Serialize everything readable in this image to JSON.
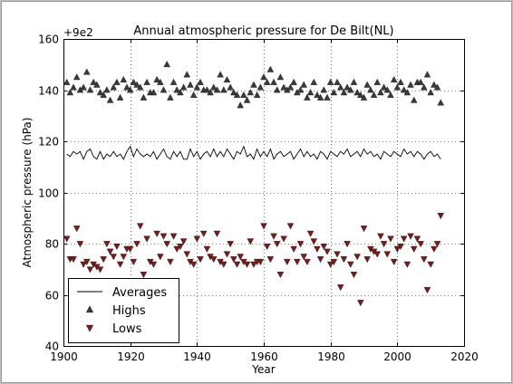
{
  "chart_data": {
    "type": "scatter",
    "title": "Annual atmospheric pressure for De Bilt(NL)",
    "xlabel": "Year",
    "ylabel": "Atmospheric pressure (hPa)",
    "offset_label": "+9e2",
    "xlim": [
      1900,
      2020
    ],
    "ylim": [
      40,
      160
    ],
    "xticks": [
      1900,
      1920,
      1940,
      1960,
      1980,
      2000,
      2020
    ],
    "yticks": [
      40,
      60,
      80,
      100,
      120,
      140,
      160
    ],
    "grid": true,
    "legend_position": "lower-left",
    "series": [
      {
        "name": "Averages",
        "kind": "line",
        "color": "#000000",
        "x": [
          1901,
          1902,
          1903,
          1904,
          1905,
          1906,
          1907,
          1908,
          1909,
          1910,
          1911,
          1912,
          1913,
          1914,
          1915,
          1916,
          1917,
          1918,
          1919,
          1920,
          1921,
          1922,
          1923,
          1924,
          1925,
          1926,
          1927,
          1928,
          1929,
          1930,
          1931,
          1932,
          1933,
          1934,
          1935,
          1936,
          1937,
          1938,
          1939,
          1940,
          1941,
          1942,
          1943,
          1944,
          1945,
          1946,
          1947,
          1948,
          1949,
          1950,
          1951,
          1952,
          1953,
          1954,
          1955,
          1956,
          1957,
          1958,
          1959,
          1960,
          1961,
          1962,
          1963,
          1964,
          1965,
          1966,
          1967,
          1968,
          1969,
          1970,
          1971,
          1972,
          1973,
          1974,
          1975,
          1976,
          1977,
          1978,
          1979,
          1980,
          1981,
          1982,
          1983,
          1984,
          1985,
          1986,
          1987,
          1988,
          1989,
          1990,
          1991,
          1992,
          1993,
          1994,
          1995,
          1996,
          1997,
          1998,
          1999,
          2000,
          2001,
          2002,
          2003,
          2004,
          2005,
          2006,
          2007,
          2008,
          2009,
          2010,
          2011,
          2012,
          2013
        ],
        "y": [
          115,
          114,
          116,
          115,
          116,
          113,
          116,
          117,
          114,
          113,
          116,
          113,
          115,
          114,
          116,
          114,
          115,
          113,
          116,
          118,
          114,
          117,
          115,
          114,
          115,
          114,
          116,
          113,
          115,
          117,
          114,
          113,
          116,
          114,
          116,
          113,
          113,
          117,
          114,
          116,
          113,
          115,
          116,
          114,
          117,
          114,
          116,
          114,
          117,
          115,
          113,
          116,
          115,
          118,
          114,
          115,
          113,
          117,
          114,
          116,
          114,
          117,
          113,
          115,
          116,
          114,
          115,
          116,
          113,
          115,
          117,
          114,
          116,
          114,
          115,
          113,
          116,
          115,
          113,
          116,
          115,
          114,
          116,
          115,
          117,
          114,
          115,
          116,
          114,
          117,
          115,
          116,
          114,
          115,
          113,
          116,
          115,
          114,
          116,
          115,
          114,
          117,
          115,
          116,
          114,
          116,
          115,
          113,
          115,
          116,
          114,
          115,
          113
        ]
      },
      {
        "name": "Highs",
        "kind": "scatter",
        "marker": "triangle-up",
        "color": "#3a3a3a",
        "x": [
          1901,
          1902,
          1903,
          1904,
          1905,
          1906,
          1907,
          1908,
          1909,
          1910,
          1911,
          1912,
          1913,
          1914,
          1915,
          1916,
          1917,
          1918,
          1919,
          1920,
          1921,
          1922,
          1923,
          1924,
          1925,
          1926,
          1927,
          1928,
          1929,
          1930,
          1931,
          1932,
          1933,
          1934,
          1935,
          1936,
          1937,
          1938,
          1939,
          1940,
          1941,
          1942,
          1943,
          1944,
          1945,
          1946,
          1947,
          1948,
          1949,
          1950,
          1951,
          1952,
          1953,
          1954,
          1955,
          1956,
          1957,
          1958,
          1959,
          1960,
          1961,
          1962,
          1963,
          1964,
          1965,
          1966,
          1967,
          1968,
          1969,
          1970,
          1971,
          1972,
          1973,
          1974,
          1975,
          1976,
          1977,
          1978,
          1979,
          1980,
          1981,
          1982,
          1983,
          1984,
          1985,
          1986,
          1987,
          1988,
          1989,
          1990,
          1991,
          1992,
          1993,
          1994,
          1995,
          1996,
          1997,
          1998,
          1999,
          2000,
          2001,
          2002,
          2003,
          2004,
          2005,
          2006,
          2007,
          2008,
          2009,
          2010,
          2011,
          2012,
          2013
        ],
        "y": [
          143,
          139,
          141,
          145,
          140,
          141,
          147,
          140,
          143,
          142,
          139,
          138,
          140,
          136,
          141,
          143,
          137,
          144,
          141,
          140,
          143,
          142,
          141,
          137,
          143,
          139,
          139,
          144,
          143,
          140,
          150,
          137,
          143,
          140,
          139,
          141,
          146,
          142,
          138,
          141,
          143,
          140,
          140,
          139,
          141,
          140,
          146,
          140,
          144,
          141,
          139,
          138,
          134,
          138,
          136,
          139,
          142,
          138,
          141,
          145,
          143,
          148,
          143,
          140,
          145,
          141,
          140,
          141,
          143,
          139,
          140,
          142,
          137,
          139,
          143,
          138,
          137,
          140,
          137,
          143,
          139,
          143,
          141,
          139,
          141,
          140,
          143,
          139,
          138,
          137,
          142,
          140,
          138,
          143,
          139,
          141,
          140,
          138,
          144,
          141,
          143,
          140,
          139,
          142,
          136,
          143,
          143,
          141,
          146,
          139,
          142,
          141,
          135
        ]
      },
      {
        "name": "Lows",
        "kind": "scatter",
        "marker": "triangle-down",
        "color": "#7b1a1a",
        "x": [
          1901,
          1902,
          1903,
          1904,
          1905,
          1906,
          1907,
          1908,
          1909,
          1910,
          1911,
          1912,
          1913,
          1914,
          1915,
          1916,
          1917,
          1918,
          1919,
          1920,
          1921,
          1922,
          1923,
          1924,
          1925,
          1926,
          1927,
          1928,
          1929,
          1930,
          1931,
          1932,
          1933,
          1934,
          1935,
          1936,
          1937,
          1938,
          1939,
          1940,
          1941,
          1942,
          1943,
          1944,
          1945,
          1946,
          1947,
          1948,
          1949,
          1950,
          1951,
          1952,
          1953,
          1954,
          1955,
          1956,
          1957,
          1958,
          1959,
          1960,
          1961,
          1962,
          1963,
          1964,
          1965,
          1966,
          1967,
          1968,
          1969,
          1970,
          1971,
          1972,
          1973,
          1974,
          1975,
          1976,
          1977,
          1978,
          1979,
          1980,
          1981,
          1982,
          1983,
          1984,
          1985,
          1986,
          1987,
          1988,
          1989,
          1990,
          1991,
          1992,
          1993,
          1994,
          1995,
          1996,
          1997,
          1998,
          1999,
          2000,
          2001,
          2002,
          2003,
          2004,
          2005,
          2006,
          2007,
          2008,
          2009,
          2010,
          2011,
          2012,
          2013
        ],
        "y": [
          82,
          74,
          74,
          86,
          80,
          72,
          73,
          70,
          72,
          71,
          70,
          74,
          80,
          77,
          75,
          79,
          72,
          75,
          78,
          78,
          73,
          80,
          87,
          68,
          82,
          73,
          72,
          84,
          75,
          83,
          80,
          73,
          83,
          78,
          79,
          81,
          76,
          73,
          72,
          82,
          74,
          84,
          78,
          75,
          74,
          84,
          73,
          72,
          76,
          80,
          74,
          72,
          75,
          73,
          72,
          81,
          72,
          73,
          73,
          87,
          79,
          74,
          83,
          80,
          68,
          82,
          73,
          87,
          78,
          73,
          80,
          75,
          73,
          84,
          81,
          78,
          74,
          79,
          77,
          72,
          73,
          76,
          63,
          74,
          80,
          72,
          68,
          75,
          57,
          86,
          74,
          78,
          77,
          76,
          83,
          80,
          76,
          82,
          73,
          78,
          79,
          82,
          72,
          83,
          78,
          82,
          80,
          74,
          62,
          72,
          78,
          80,
          91
        ]
      }
    ]
  }
}
